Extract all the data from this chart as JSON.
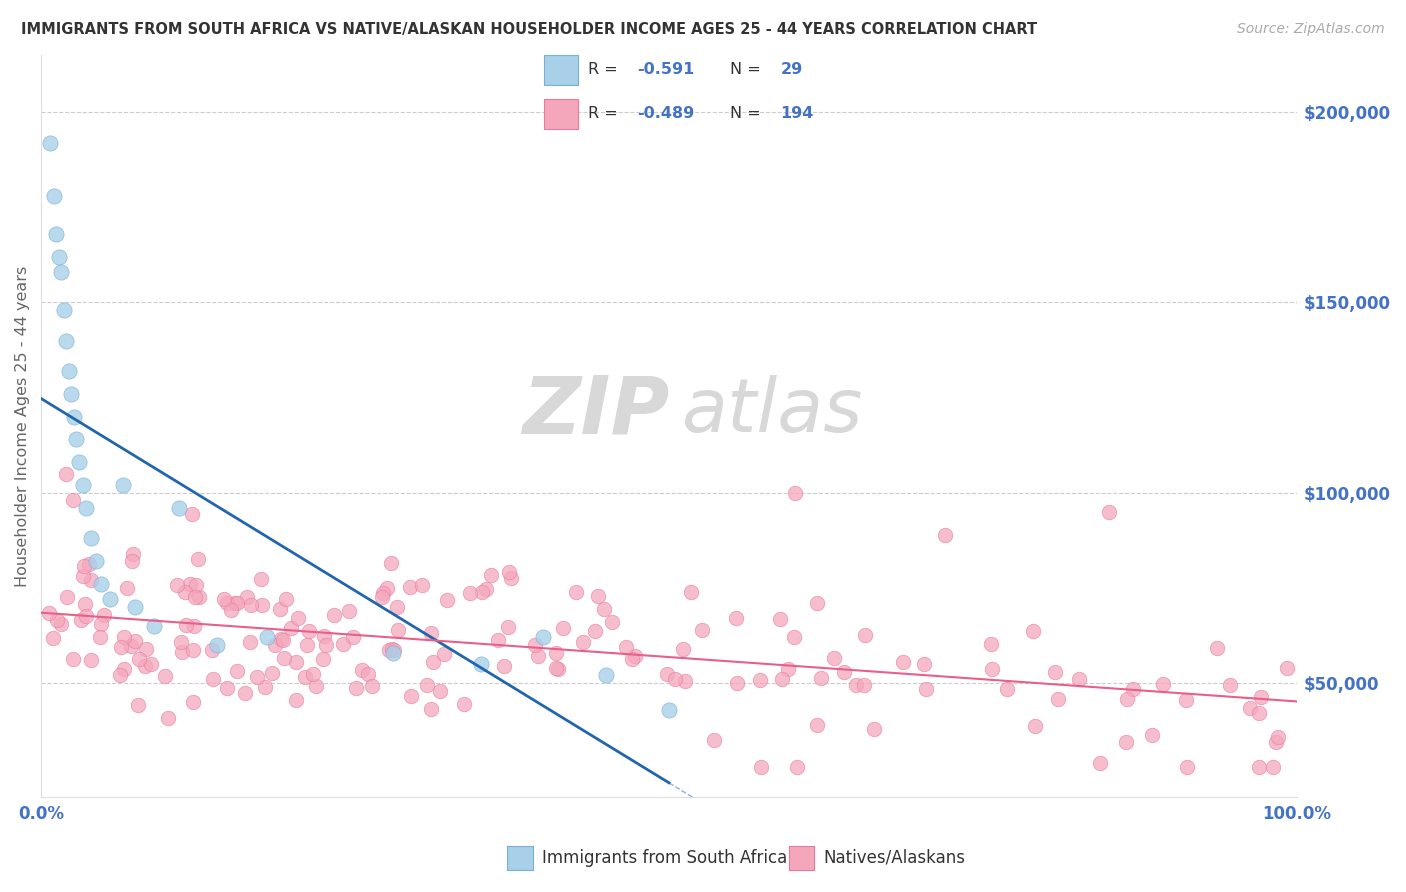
{
  "title": "IMMIGRANTS FROM SOUTH AFRICA VS NATIVE/ALASKAN HOUSEHOLDER INCOME AGES 25 - 44 YEARS CORRELATION CHART",
  "source": "Source: ZipAtlas.com",
  "ylabel": "Householder Income Ages 25 - 44 years",
  "xlim": [
    0.0,
    1.0
  ],
  "ylim": [
    20000,
    215000
  ],
  "yticks": [
    50000,
    100000,
    150000,
    200000
  ],
  "ytick_labels": [
    "$50,000",
    "$100,000",
    "$150,000",
    "$200,000"
  ],
  "color_blue": "#a8d0e8",
  "color_pink": "#f4a7bb",
  "color_blue_edge": "#7ab0d4",
  "color_pink_edge": "#e87aa0",
  "line_color_blue": "#2166ac",
  "line_color_pink": "#e8608a",
  "watermark_color": "#e0e0e0",
  "background_color": "#ffffff",
  "grid_color": "#cccccc",
  "title_color": "#333333",
  "axis_label_color": "#666666",
  "tick_label_color": "#4472C4",
  "legend_text_color": "#333333",
  "legend_r_color": "#4472C4",
  "legend_n_color": "#4472C4",
  "source_color": "#aaaaaa",
  "blue_x": [
    0.005,
    0.01,
    0.012,
    0.015,
    0.015,
    0.018,
    0.02,
    0.022,
    0.025,
    0.025,
    0.028,
    0.03,
    0.032,
    0.035,
    0.038,
    0.04,
    0.042,
    0.045,
    0.05,
    0.055,
    0.06,
    0.07,
    0.08,
    0.1,
    0.13,
    0.18,
    0.28,
    0.38,
    0.48
  ],
  "blue_y": [
    192000,
    175000,
    168000,
    162000,
    155000,
    145000,
    138000,
    130000,
    125000,
    118000,
    112000,
    108000,
    102000,
    98000,
    90000,
    88000,
    82000,
    78000,
    102000,
    78000,
    72000,
    70000,
    98000,
    65000,
    58000,
    62000,
    55000,
    52000,
    42000
  ],
  "pink_x": [
    0.015,
    0.02,
    0.025,
    0.028,
    0.03,
    0.032,
    0.035,
    0.038,
    0.04,
    0.042,
    0.045,
    0.048,
    0.05,
    0.052,
    0.055,
    0.058,
    0.06,
    0.062,
    0.065,
    0.068,
    0.07,
    0.072,
    0.075,
    0.078,
    0.08,
    0.082,
    0.085,
    0.088,
    0.09,
    0.092,
    0.095,
    0.098,
    0.1,
    0.105,
    0.11,
    0.115,
    0.12,
    0.125,
    0.13,
    0.135,
    0.14,
    0.145,
    0.15,
    0.155,
    0.16,
    0.165,
    0.17,
    0.175,
    0.18,
    0.185,
    0.19,
    0.195,
    0.2,
    0.21,
    0.22,
    0.23,
    0.24,
    0.25,
    0.26,
    0.27,
    0.28,
    0.29,
    0.3,
    0.31,
    0.32,
    0.33,
    0.34,
    0.35,
    0.36,
    0.37,
    0.38,
    0.39,
    0.4,
    0.41,
    0.42,
    0.43,
    0.44,
    0.45,
    0.46,
    0.47,
    0.48,
    0.49,
    0.5,
    0.51,
    0.52,
    0.53,
    0.54,
    0.55,
    0.56,
    0.57,
    0.58,
    0.59,
    0.6,
    0.61,
    0.62,
    0.63,
    0.64,
    0.65,
    0.66,
    0.67,
    0.68,
    0.7,
    0.71,
    0.72,
    0.73,
    0.74,
    0.75,
    0.76,
    0.77,
    0.78,
    0.79,
    0.8,
    0.81,
    0.82,
    0.83,
    0.84,
    0.85,
    0.86,
    0.87,
    0.88,
    0.89,
    0.9,
    0.91,
    0.92,
    0.93,
    0.94,
    0.95,
    0.96,
    0.97,
    0.98,
    0.99,
    1.0,
    0.025,
    0.04,
    0.06,
    0.08,
    0.1,
    0.15,
    0.2,
    0.25,
    0.3,
    0.35,
    0.4,
    0.45,
    0.5,
    0.55,
    0.6,
    0.65,
    0.7,
    0.75,
    0.8,
    0.85,
    0.9,
    0.95,
    1.0,
    0.03,
    0.05,
    0.07,
    0.09,
    0.11,
    0.13,
    0.15,
    0.17,
    0.19,
    0.21,
    0.23,
    0.25,
    0.27,
    0.29,
    0.31,
    0.33,
    0.35,
    0.37,
    0.39,
    0.41,
    0.43,
    0.45,
    0.47,
    0.49,
    0.51,
    0.53,
    0.55,
    0.57,
    0.59,
    0.61,
    0.63,
    0.65,
    0.67,
    0.69,
    0.71,
    0.73,
    0.75,
    0.77,
    0.79,
    0.81,
    0.83,
    0.85,
    0.87,
    0.89,
    0.91
  ],
  "pink_y": [
    72000,
    68000,
    80000,
    65000,
    72000,
    62000,
    68000,
    58000,
    65000,
    75000,
    62000,
    58000,
    70000,
    55000,
    62000,
    72000,
    58000,
    65000,
    55000,
    60000,
    68000,
    52000,
    58000,
    65000,
    55000,
    50000,
    62000,
    48000,
    58000,
    72000,
    52000,
    65000,
    60000,
    55000,
    68000,
    50000,
    58000,
    45000,
    62000,
    55000,
    48000,
    60000,
    52000,
    65000,
    45000,
    58000,
    50000,
    55000,
    62000,
    48000,
    58000,
    42000,
    55000,
    68000,
    50000,
    58000,
    45000,
    60000,
    52000,
    55000,
    48000,
    62000,
    45000,
    58000,
    50000,
    55000,
    48000,
    52000,
    45000,
    58000,
    42000,
    55000,
    48000,
    52000,
    45000,
    58000,
    50000,
    48000,
    55000,
    42000,
    50000,
    45000,
    55000,
    48000,
    52000,
    42000,
    48000,
    55000,
    45000,
    50000,
    42000,
    48000,
    45000,
    52000,
    42000,
    48000,
    45000,
    50000,
    42000,
    48000,
    45000,
    50000,
    42000,
    48000,
    45000,
    52000,
    42000,
    48000,
    45000,
    50000,
    42000,
    48000,
    45000,
    52000,
    42000,
    48000,
    45000,
    50000,
    38000,
    45000,
    42000,
    48000,
    38000,
    45000,
    42000,
    48000,
    38000,
    42000,
    45000,
    48000,
    38000,
    42000,
    78000,
    65000,
    55000,
    48000,
    45000,
    55000,
    50000,
    48000,
    45000,
    52000,
    48000,
    45000,
    50000,
    45000,
    42000,
    48000,
    45000,
    50000,
    42000,
    48000,
    45000,
    42000,
    38000,
    75000,
    65000,
    58000,
    52000,
    48000,
    58000,
    55000,
    50000,
    48000,
    55000,
    50000,
    48000,
    55000,
    50000,
    48000,
    52000,
    48000,
    45000,
    52000,
    48000,
    45000,
    50000,
    48000,
    45000,
    50000,
    48000,
    45000,
    50000,
    48000,
    45000,
    50000,
    48000,
    45000,
    50000,
    45000,
    48000,
    45000,
    48000,
    45000,
    48000,
    42000,
    45000,
    42000,
    45000,
    42000
  ]
}
